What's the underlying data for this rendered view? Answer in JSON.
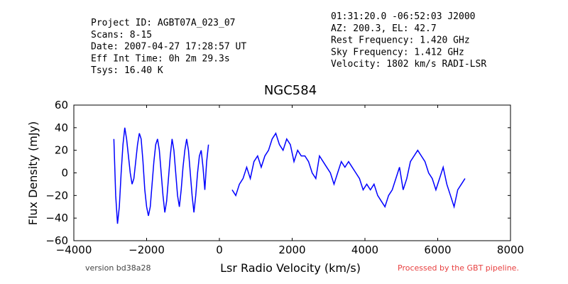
{
  "chart_data": {
    "type": "line",
    "title": "NGC584",
    "xlabel": "Lsr Radio Velocity (km/s)",
    "ylabel": "Flux Density (mJy)",
    "info_left": [
      "Project ID: AGBT07A_023_07",
      "Scans: 8-15",
      "Date: 2007-04-27 17:28:57 UT",
      "Eff Int Time: 0h 2m 29.3s",
      "Tsys: 16.40 K"
    ],
    "info_right": [
      "01:31:20.0 -06:52:03 J2000",
      "AZ: 200.3, EL: 42.7",
      "Rest Frequency:   1.420 GHz",
      "Sky Frequency:    1.412 GHz",
      "Velocity: 1802 km/s RADI-LSR"
    ],
    "version": "version bd38a28",
    "pipeline_note": "Processed by the GBT pipeline.",
    "xlim": [
      -4000,
      8000
    ],
    "ylim": [
      -60,
      60
    ],
    "xticks": [
      {
        "value": -4000,
        "label": "−4000"
      },
      {
        "value": -2000,
        "label": "−2000"
      },
      0,
      2000,
      4000,
      6000,
      8000
    ],
    "yticks": [
      {
        "value": -60,
        "label": "−60"
      },
      {
        "value": -40,
        "label": "−40"
      },
      {
        "value": -20,
        "label": "−20"
      },
      0,
      20,
      40,
      60
    ],
    "x": [
      -2900,
      -2850,
      -2800,
      -2750,
      -2700,
      -2650,
      -2600,
      -2550,
      -2500,
      -2450,
      -2400,
      -2350,
      -2300,
      -2250,
      -2200,
      -2150,
      -2100,
      -2050,
      -2000,
      -1950,
      -1900,
      -1850,
      -1800,
      -1750,
      -1700,
      -1650,
      -1600,
      -1550,
      -1500,
      -1450,
      -1400,
      -1350,
      -1300,
      -1250,
      -1200,
      -1150,
      -1100,
      -1050,
      -1000,
      -950,
      -900,
      -850,
      -800,
      -750,
      -700,
      -650,
      -600,
      -550,
      -500,
      -450,
      -400,
      -350,
      -300,
      -50,
      350,
      450,
      550,
      650,
      750,
      850,
      950,
      1050,
      1150,
      1250,
      1350,
      1450,
      1550,
      1650,
      1750,
      1850,
      1950,
      2050,
      2150,
      2250,
      2350,
      2450,
      2550,
      2650,
      2750,
      2850,
      2950,
      3050,
      3150,
      3250,
      3350,
      3450,
      3550,
      3650,
      3750,
      3850,
      3950,
      4050,
      4150,
      4250,
      4350,
      4450,
      4550,
      4650,
      4750,
      4850,
      4950,
      5050,
      5150,
      5250,
      5350,
      5450,
      5550,
      5650,
      5750,
      5850,
      5950,
      6050,
      6150,
      6250,
      6350,
      6450,
      6550,
      6650,
      6750
    ],
    "series": [
      {
        "color": "#0000ff",
        "values": [
          30,
          -20,
          -45,
          -30,
          0,
          25,
          40,
          30,
          15,
          0,
          -10,
          -5,
          10,
          25,
          35,
          30,
          10,
          -15,
          -30,
          -38,
          -30,
          -10,
          10,
          25,
          30,
          20,
          0,
          -20,
          -35,
          -25,
          -5,
          15,
          30,
          20,
          0,
          -20,
          -30,
          -15,
          5,
          20,
          30,
          20,
          0,
          -20,
          -35,
          -20,
          0,
          15,
          20,
          5,
          -15,
          10,
          25,
          null,
          -15,
          -20,
          -10,
          -5,
          5,
          -5,
          10,
          15,
          5,
          15,
          20,
          30,
          35,
          25,
          20,
          30,
          25,
          10,
          20,
          15,
          15,
          10,
          0,
          -5,
          15,
          10,
          5,
          0,
          -10,
          0,
          10,
          5,
          10,
          5,
          0,
          -5,
          -15,
          -10,
          -15,
          -10,
          -20,
          -25,
          -30,
          -20,
          -15,
          -5,
          5,
          -15,
          -5,
          10,
          15,
          20,
          15,
          10,
          0,
          -5,
          -15,
          -5,
          5,
          -10,
          -20,
          -30,
          -15,
          -10,
          -5
        ]
      }
    ]
  }
}
